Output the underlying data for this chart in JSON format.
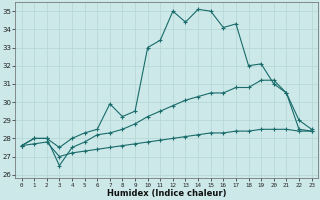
{
  "title": "",
  "xlabel": "Humidex (Indice chaleur)",
  "bg_color": "#cce8e8",
  "grid_color": "#aacccc",
  "line_color": "#1a6b6b",
  "xlim": [
    -0.5,
    23.5
  ],
  "ylim": [
    25.8,
    35.5
  ],
  "xticks": [
    0,
    1,
    2,
    3,
    4,
    5,
    6,
    7,
    8,
    9,
    10,
    11,
    12,
    13,
    14,
    15,
    16,
    17,
    18,
    19,
    20,
    21,
    22,
    23
  ],
  "yticks": [
    26,
    27,
    28,
    29,
    30,
    31,
    32,
    33,
    34,
    35
  ],
  "line1_y": [
    27.6,
    28.0,
    28.0,
    27.5,
    28.0,
    28.3,
    28.5,
    29.9,
    29.2,
    29.5,
    33.0,
    33.4,
    35.0,
    34.4,
    35.1,
    35.0,
    34.1,
    34.3,
    32.0,
    32.1,
    31.0,
    30.5,
    28.5,
    28.4
  ],
  "line2_y": [
    27.6,
    28.0,
    28.0,
    26.5,
    27.5,
    27.8,
    28.2,
    28.3,
    28.5,
    28.8,
    29.2,
    29.5,
    29.8,
    30.1,
    30.3,
    30.5,
    30.5,
    30.8,
    30.8,
    31.2,
    31.2,
    30.5,
    29.0,
    28.5
  ],
  "line3_y": [
    27.6,
    27.7,
    27.8,
    27.0,
    27.2,
    27.3,
    27.4,
    27.5,
    27.6,
    27.7,
    27.8,
    27.9,
    28.0,
    28.1,
    28.2,
    28.3,
    28.3,
    28.4,
    28.4,
    28.5,
    28.5,
    28.5,
    28.4,
    28.4
  ]
}
